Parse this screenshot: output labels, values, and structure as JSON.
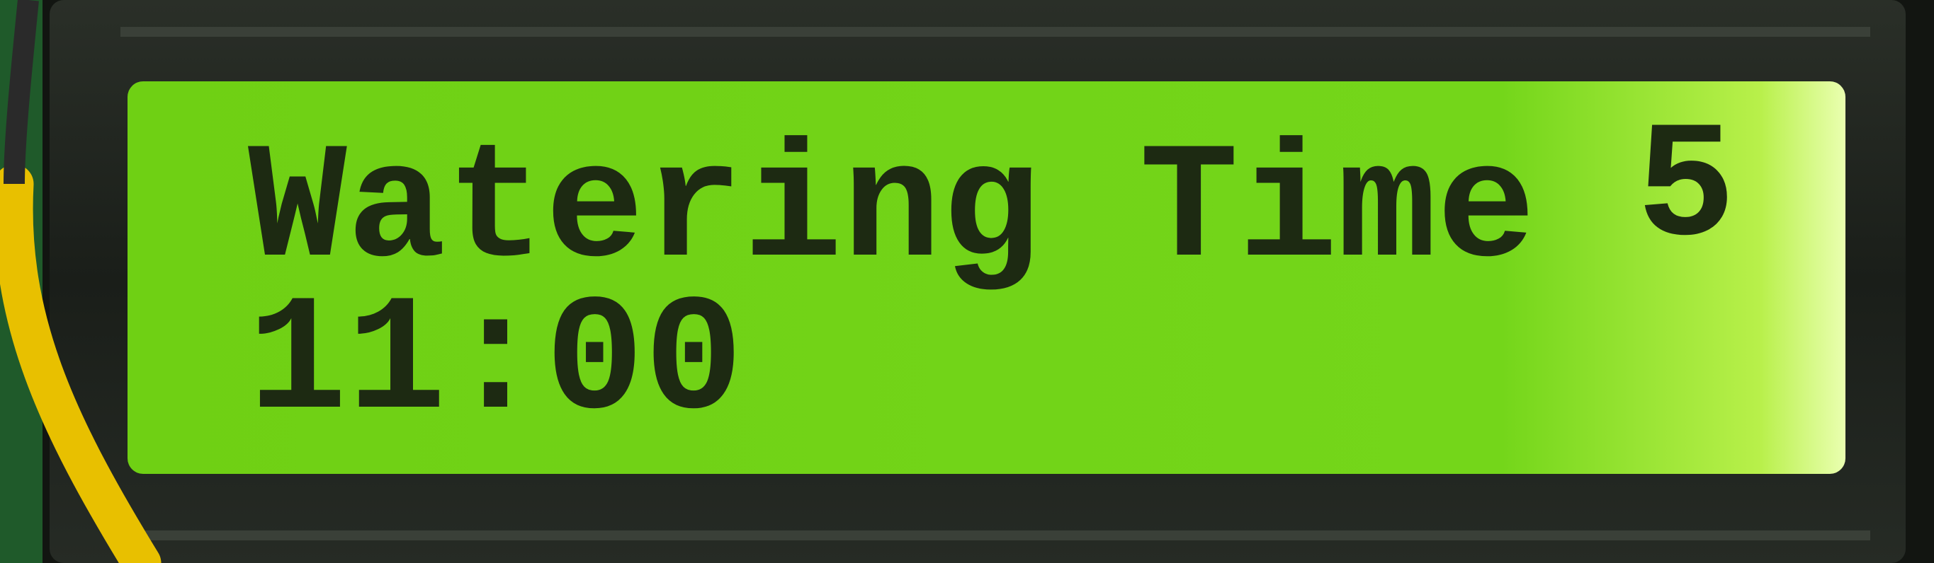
{
  "display": {
    "line1": {
      "label": "Watering Time",
      "value": "5"
    },
    "line2": "11:00"
  }
}
